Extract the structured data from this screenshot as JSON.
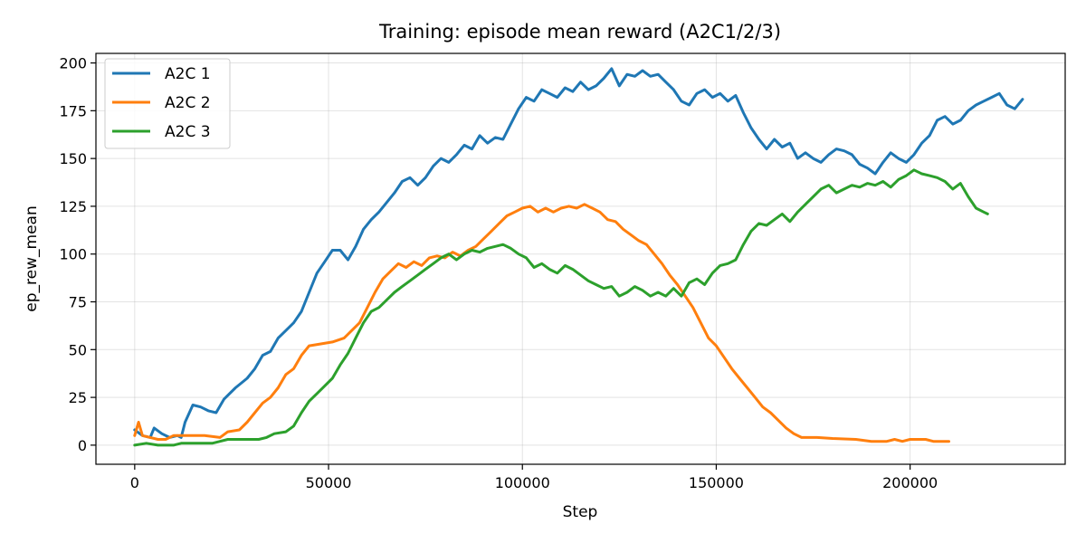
{
  "chart_data": {
    "type": "line",
    "title": "Training: episode mean reward (A2C1/2/3)",
    "xlabel": "Step",
    "ylabel": "ep_rew_mean",
    "xlim": [
      -10000,
      240000
    ],
    "ylim": [
      -10,
      205
    ],
    "xticks": [
      0,
      50000,
      100000,
      150000,
      200000
    ],
    "yticks": [
      0,
      25,
      50,
      75,
      100,
      125,
      150,
      175,
      200
    ],
    "grid": true,
    "legend_position": "top-left",
    "series": [
      {
        "name": "A2C 1",
        "color": "#1f77b4",
        "points": [
          [
            0,
            8
          ],
          [
            2000,
            5
          ],
          [
            4000,
            4
          ],
          [
            5000,
            9
          ],
          [
            7000,
            6
          ],
          [
            9000,
            4
          ],
          [
            11000,
            5
          ],
          [
            12000,
            4
          ],
          [
            13000,
            12
          ],
          [
            15000,
            21
          ],
          [
            17000,
            20
          ],
          [
            19000,
            18
          ],
          [
            21000,
            17
          ],
          [
            23000,
            24
          ],
          [
            26000,
            30
          ],
          [
            29000,
            35
          ],
          [
            31000,
            40
          ],
          [
            33000,
            47
          ],
          [
            35000,
            49
          ],
          [
            37000,
            56
          ],
          [
            39000,
            60
          ],
          [
            41000,
            64
          ],
          [
            43000,
            70
          ],
          [
            45000,
            80
          ],
          [
            47000,
            90
          ],
          [
            49000,
            96
          ],
          [
            51000,
            102
          ],
          [
            53000,
            102
          ],
          [
            55000,
            97
          ],
          [
            57000,
            104
          ],
          [
            59000,
            113
          ],
          [
            61000,
            118
          ],
          [
            63000,
            122
          ],
          [
            65000,
            127
          ],
          [
            67000,
            132
          ],
          [
            69000,
            138
          ],
          [
            71000,
            140
          ],
          [
            73000,
            136
          ],
          [
            75000,
            140
          ],
          [
            77000,
            146
          ],
          [
            79000,
            150
          ],
          [
            81000,
            148
          ],
          [
            83000,
            152
          ],
          [
            85000,
            157
          ],
          [
            87000,
            155
          ],
          [
            89000,
            162
          ],
          [
            91000,
            158
          ],
          [
            93000,
            161
          ],
          [
            95000,
            160
          ],
          [
            97000,
            168
          ],
          [
            99000,
            176
          ],
          [
            101000,
            182
          ],
          [
            103000,
            180
          ],
          [
            105000,
            186
          ],
          [
            107000,
            184
          ],
          [
            109000,
            182
          ],
          [
            111000,
            187
          ],
          [
            113000,
            185
          ],
          [
            115000,
            190
          ],
          [
            117000,
            186
          ],
          [
            119000,
            188
          ],
          [
            121000,
            192
          ],
          [
            123000,
            197
          ],
          [
            125000,
            188
          ],
          [
            127000,
            194
          ],
          [
            129000,
            193
          ],
          [
            131000,
            196
          ],
          [
            133000,
            193
          ],
          [
            135000,
            194
          ],
          [
            137000,
            190
          ],
          [
            139000,
            186
          ],
          [
            141000,
            180
          ],
          [
            143000,
            178
          ],
          [
            145000,
            184
          ],
          [
            147000,
            186
          ],
          [
            149000,
            182
          ],
          [
            151000,
            184
          ],
          [
            153000,
            180
          ],
          [
            155000,
            183
          ],
          [
            157000,
            174
          ],
          [
            159000,
            166
          ],
          [
            161000,
            160
          ],
          [
            163000,
            155
          ],
          [
            165000,
            160
          ],
          [
            167000,
            156
          ],
          [
            169000,
            158
          ],
          [
            171000,
            150
          ],
          [
            173000,
            153
          ],
          [
            175000,
            150
          ],
          [
            177000,
            148
          ],
          [
            179000,
            152
          ],
          [
            181000,
            155
          ],
          [
            183000,
            154
          ],
          [
            185000,
            152
          ],
          [
            187000,
            147
          ],
          [
            189000,
            145
          ],
          [
            191000,
            142
          ],
          [
            193000,
            148
          ],
          [
            195000,
            153
          ],
          [
            197000,
            150
          ],
          [
            199000,
            148
          ],
          [
            201000,
            152
          ],
          [
            203000,
            158
          ],
          [
            205000,
            162
          ],
          [
            207000,
            170
          ],
          [
            209000,
            172
          ],
          [
            211000,
            168
          ],
          [
            213000,
            170
          ],
          [
            215000,
            175
          ],
          [
            217000,
            178
          ],
          [
            219000,
            180
          ],
          [
            221000,
            182
          ],
          [
            223000,
            184
          ],
          [
            225000,
            178
          ],
          [
            227000,
            176
          ],
          [
            229000,
            181
          ]
        ]
      },
      {
        "name": "A2C 2",
        "color": "#ff7f0e",
        "points": [
          [
            0,
            5
          ],
          [
            1000,
            12
          ],
          [
            2000,
            5
          ],
          [
            4000,
            4
          ],
          [
            6000,
            3
          ],
          [
            8000,
            3
          ],
          [
            10000,
            5
          ],
          [
            14000,
            5
          ],
          [
            18000,
            5
          ],
          [
            22000,
            4
          ],
          [
            24000,
            7
          ],
          [
            27000,
            8
          ],
          [
            29000,
            12
          ],
          [
            31000,
            17
          ],
          [
            33000,
            22
          ],
          [
            35000,
            25
          ],
          [
            37000,
            30
          ],
          [
            39000,
            37
          ],
          [
            41000,
            40
          ],
          [
            43000,
            47
          ],
          [
            45000,
            52
          ],
          [
            48000,
            53
          ],
          [
            51000,
            54
          ],
          [
            54000,
            56
          ],
          [
            56000,
            60
          ],
          [
            58000,
            64
          ],
          [
            60000,
            72
          ],
          [
            62000,
            80
          ],
          [
            64000,
            87
          ],
          [
            66000,
            91
          ],
          [
            68000,
            95
          ],
          [
            70000,
            93
          ],
          [
            72000,
            96
          ],
          [
            74000,
            94
          ],
          [
            76000,
            98
          ],
          [
            78000,
            99
          ],
          [
            80000,
            98
          ],
          [
            82000,
            101
          ],
          [
            84000,
            99
          ],
          [
            86000,
            102
          ],
          [
            88000,
            104
          ],
          [
            90000,
            108
          ],
          [
            92000,
            112
          ],
          [
            94000,
            116
          ],
          [
            96000,
            120
          ],
          [
            98000,
            122
          ],
          [
            100000,
            124
          ],
          [
            102000,
            125
          ],
          [
            104000,
            122
          ],
          [
            106000,
            124
          ],
          [
            108000,
            122
          ],
          [
            110000,
            124
          ],
          [
            112000,
            125
          ],
          [
            114000,
            124
          ],
          [
            116000,
            126
          ],
          [
            118000,
            124
          ],
          [
            120000,
            122
          ],
          [
            122000,
            118
          ],
          [
            124000,
            117
          ],
          [
            126000,
            113
          ],
          [
            128000,
            110
          ],
          [
            130000,
            107
          ],
          [
            132000,
            105
          ],
          [
            134000,
            100
          ],
          [
            136000,
            95
          ],
          [
            138000,
            89
          ],
          [
            140000,
            84
          ],
          [
            142000,
            78
          ],
          [
            144000,
            72
          ],
          [
            146000,
            64
          ],
          [
            148000,
            56
          ],
          [
            150000,
            52
          ],
          [
            152000,
            46
          ],
          [
            154000,
            40
          ],
          [
            156000,
            35
          ],
          [
            158000,
            30
          ],
          [
            160000,
            25
          ],
          [
            162000,
            20
          ],
          [
            164000,
            17
          ],
          [
            166000,
            13
          ],
          [
            168000,
            9
          ],
          [
            170000,
            6
          ],
          [
            172000,
            4
          ],
          [
            176000,
            4
          ],
          [
            180000,
            3.5
          ],
          [
            186000,
            3
          ],
          [
            190000,
            2
          ],
          [
            194000,
            2
          ],
          [
            196000,
            3
          ],
          [
            198000,
            2
          ],
          [
            200000,
            3
          ],
          [
            204000,
            3
          ],
          [
            206000,
            2
          ],
          [
            210000,
            2
          ]
        ]
      },
      {
        "name": "A2C 3",
        "color": "#2ca02c",
        "points": [
          [
            0,
            0
          ],
          [
            3000,
            1
          ],
          [
            6000,
            0
          ],
          [
            10000,
            0
          ],
          [
            12000,
            1
          ],
          [
            16000,
            1
          ],
          [
            20000,
            1
          ],
          [
            22000,
            2
          ],
          [
            24000,
            3
          ],
          [
            28000,
            3
          ],
          [
            32000,
            3
          ],
          [
            34000,
            4
          ],
          [
            36000,
            6
          ],
          [
            39000,
            7
          ],
          [
            41000,
            10
          ],
          [
            43000,
            17
          ],
          [
            45000,
            23
          ],
          [
            47000,
            27
          ],
          [
            49000,
            31
          ],
          [
            51000,
            35
          ],
          [
            53000,
            42
          ],
          [
            55000,
            48
          ],
          [
            57000,
            56
          ],
          [
            59000,
            64
          ],
          [
            61000,
            70
          ],
          [
            63000,
            72
          ],
          [
            65000,
            76
          ],
          [
            67000,
            80
          ],
          [
            69000,
            83
          ],
          [
            71000,
            86
          ],
          [
            73000,
            89
          ],
          [
            75000,
            92
          ],
          [
            77000,
            95
          ],
          [
            79000,
            98
          ],
          [
            81000,
            100
          ],
          [
            83000,
            97
          ],
          [
            85000,
            100
          ],
          [
            87000,
            102
          ],
          [
            89000,
            101
          ],
          [
            91000,
            103
          ],
          [
            93000,
            104
          ],
          [
            95000,
            105
          ],
          [
            97000,
            103
          ],
          [
            99000,
            100
          ],
          [
            101000,
            98
          ],
          [
            103000,
            93
          ],
          [
            105000,
            95
          ],
          [
            107000,
            92
          ],
          [
            109000,
            90
          ],
          [
            111000,
            94
          ],
          [
            113000,
            92
          ],
          [
            115000,
            89
          ],
          [
            117000,
            86
          ],
          [
            119000,
            84
          ],
          [
            121000,
            82
          ],
          [
            123000,
            83
          ],
          [
            125000,
            78
          ],
          [
            127000,
            80
          ],
          [
            129000,
            83
          ],
          [
            131000,
            81
          ],
          [
            133000,
            78
          ],
          [
            135000,
            80
          ],
          [
            137000,
            78
          ],
          [
            139000,
            82
          ],
          [
            141000,
            78
          ],
          [
            143000,
            85
          ],
          [
            145000,
            87
          ],
          [
            147000,
            84
          ],
          [
            149000,
            90
          ],
          [
            151000,
            94
          ],
          [
            153000,
            95
          ],
          [
            155000,
            97
          ],
          [
            157000,
            105
          ],
          [
            159000,
            112
          ],
          [
            161000,
            116
          ],
          [
            163000,
            115
          ],
          [
            165000,
            118
          ],
          [
            167000,
            121
          ],
          [
            169000,
            117
          ],
          [
            171000,
            122
          ],
          [
            173000,
            126
          ],
          [
            175000,
            130
          ],
          [
            177000,
            134
          ],
          [
            179000,
            136
          ],
          [
            181000,
            132
          ],
          [
            183000,
            134
          ],
          [
            185000,
            136
          ],
          [
            187000,
            135
          ],
          [
            189000,
            137
          ],
          [
            191000,
            136
          ],
          [
            193000,
            138
          ],
          [
            195000,
            135
          ],
          [
            197000,
            139
          ],
          [
            199000,
            141
          ],
          [
            201000,
            144
          ],
          [
            203000,
            142
          ],
          [
            205000,
            141
          ],
          [
            207000,
            140
          ],
          [
            209000,
            138
          ],
          [
            211000,
            134
          ],
          [
            213000,
            137
          ],
          [
            215000,
            130
          ],
          [
            217000,
            124
          ],
          [
            219000,
            122
          ],
          [
            220000,
            121
          ]
        ]
      }
    ]
  }
}
